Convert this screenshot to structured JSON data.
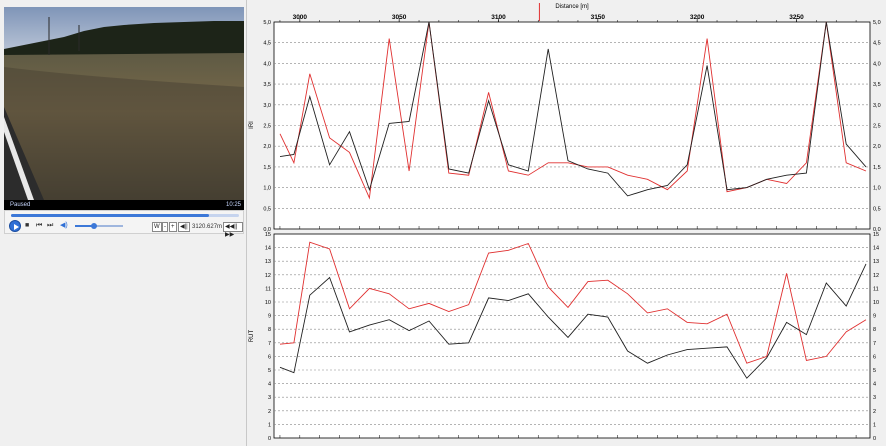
{
  "player": {
    "status": "Paused",
    "time": "10:25",
    "position": "3120.627m",
    "progress": 0.87,
    "volume": 0.35,
    "icons": [
      "play-icon",
      "stop-icon",
      "previous-icon",
      "next-icon",
      "volume-icon",
      "frame-step-icon",
      "loop-icon"
    ],
    "mini_buttons": [
      "W",
      "-",
      "+",
      "◀||",
      "||▶",
      "◀◀||▶▶"
    ]
  },
  "colors": {
    "measurement_a": "#e03030",
    "measurement_b": "#202020",
    "accent": "#3c78d8"
  },
  "chart_data": [
    {
      "type": "line",
      "title": "",
      "xlabel": "Distance [m]",
      "ylabel": "IRI",
      "xlim": [
        2987,
        3287
      ],
      "ylim": [
        0,
        5
      ],
      "x_ticks": [
        3000,
        3050,
        3100,
        3150,
        3200,
        3250
      ],
      "y_ticks": [
        "0,0",
        "0,5",
        "1,0",
        "1,5",
        "2,0",
        "2,5",
        "3,0",
        "3,5",
        "4,0",
        "4,5",
        "5,0"
      ],
      "current_position": 3120.6,
      "grid": true,
      "series": [
        {
          "color": "#e03030",
          "x": [
            2990,
            2997,
            3005,
            3015,
            3025,
            3035,
            3045,
            3055,
            3065,
            3075,
            3085,
            3095,
            3105,
            3115,
            3125,
            3135,
            3145,
            3155,
            3165,
            3175,
            3185,
            3195,
            3205,
            3215,
            3225,
            3235,
            3245,
            3255,
            3265,
            3275,
            3285
          ],
          "y": [
            2.3,
            1.6,
            3.75,
            2.2,
            1.85,
            0.75,
            4.6,
            1.4,
            5.5,
            1.35,
            1.3,
            3.3,
            1.4,
            1.3,
            1.6,
            1.6,
            1.5,
            1.5,
            1.3,
            1.2,
            0.95,
            1.4,
            4.6,
            0.9,
            1.0,
            1.2,
            1.1,
            1.6,
            5.5,
            1.6,
            1.4
          ]
        },
        {
          "color": "#202020",
          "x": [
            2990,
            2997,
            3005,
            3015,
            3025,
            3035,
            3045,
            3055,
            3065,
            3075,
            3085,
            3095,
            3105,
            3115,
            3125,
            3135,
            3145,
            3155,
            3165,
            3175,
            3185,
            3195,
            3205,
            3215,
            3225,
            3235,
            3245,
            3255,
            3265,
            3275,
            3285
          ],
          "y": [
            1.75,
            1.8,
            3.2,
            1.55,
            2.35,
            0.95,
            2.55,
            2.6,
            5.5,
            1.45,
            1.35,
            3.1,
            1.55,
            1.4,
            4.35,
            1.65,
            1.45,
            1.35,
            0.8,
            0.95,
            1.05,
            1.55,
            3.95,
            0.95,
            1.0,
            1.2,
            1.3,
            1.35,
            5.5,
            2.05,
            1.5
          ]
        }
      ]
    },
    {
      "type": "line",
      "title": "",
      "xlabel": "",
      "ylabel": "RUT",
      "xlim": [
        2987,
        3287
      ],
      "ylim": [
        0,
        15
      ],
      "y_ticks": [
        "0",
        "1",
        "2",
        "3",
        "4",
        "5",
        "6",
        "7",
        "8",
        "9",
        "10",
        "11",
        "12",
        "13",
        "14",
        "15"
      ],
      "grid": true,
      "series": [
        {
          "color": "#e03030",
          "x": [
            2990,
            2997,
            3005,
            3015,
            3025,
            3035,
            3045,
            3055,
            3065,
            3075,
            3085,
            3095,
            3105,
            3115,
            3125,
            3135,
            3145,
            3155,
            3165,
            3175,
            3185,
            3195,
            3205,
            3215,
            3225,
            3235,
            3245,
            3255,
            3265,
            3275,
            3285
          ],
          "y": [
            6.9,
            7.0,
            14.4,
            13.9,
            9.5,
            11.0,
            10.6,
            9.5,
            9.9,
            9.3,
            9.8,
            13.6,
            13.8,
            14.3,
            11.1,
            9.6,
            11.5,
            11.6,
            10.6,
            9.2,
            9.5,
            8.5,
            8.4,
            9.1,
            5.5,
            6.0,
            12.1,
            5.7,
            6.0,
            7.8,
            8.7
          ]
        },
        {
          "color": "#202020",
          "x": [
            2990,
            2997,
            3005,
            3015,
            3025,
            3035,
            3045,
            3055,
            3065,
            3075,
            3085,
            3095,
            3105,
            3115,
            3125,
            3135,
            3145,
            3155,
            3165,
            3175,
            3185,
            3195,
            3205,
            3215,
            3225,
            3235,
            3245,
            3255,
            3265,
            3275,
            3285
          ],
          "y": [
            5.2,
            4.8,
            10.5,
            11.8,
            7.8,
            8.3,
            8.7,
            7.9,
            8.6,
            6.9,
            7.0,
            10.3,
            10.1,
            10.6,
            8.9,
            7.4,
            9.1,
            8.9,
            6.4,
            5.5,
            6.1,
            6.5,
            6.6,
            6.7,
            4.4,
            5.9,
            8.5,
            7.6,
            11.4,
            9.7,
            12.8
          ]
        }
      ]
    }
  ]
}
